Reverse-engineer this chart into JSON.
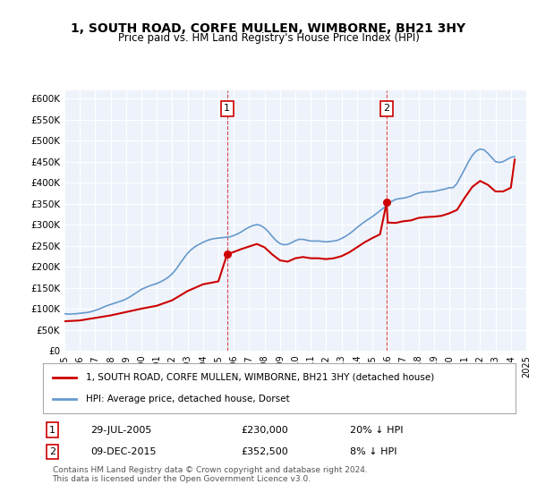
{
  "title": "1, SOUTH ROAD, CORFE MULLEN, WIMBORNE, BH21 3HY",
  "subtitle": "Price paid vs. HM Land Registry's House Price Index (HPI)",
  "ylabel": "",
  "ylim": [
    0,
    620000
  ],
  "yticks": [
    0,
    50000,
    100000,
    150000,
    200000,
    250000,
    300000,
    350000,
    400000,
    450000,
    500000,
    550000,
    600000
  ],
  "background_color": "#eef3fb",
  "plot_bg": "#eef3fb",
  "legend_label_red": "1, SOUTH ROAD, CORFE MULLEN, WIMBORNE, BH21 3HY (detached house)",
  "legend_label_blue": "HPI: Average price, detached house, Dorset",
  "marker1_date": 2005.57,
  "marker1_price": 230000,
  "marker1_label": "1",
  "marker2_date": 2015.93,
  "marker2_price": 352500,
  "marker2_label": "2",
  "footnote1": "1     29-JUL-2005          £230,000          20% ↓ HPI",
  "footnote2": "2     09-DEC-2015          £352,500            8% ↓ HPI",
  "copyright": "Contains HM Land Registry data © Crown copyright and database right 2024.\nThis data is licensed under the Open Government Licence v3.0.",
  "red_color": "#cc0000",
  "blue_color": "#6699cc",
  "hpi_data": {
    "years": [
      1995.0,
      1995.25,
      1995.5,
      1995.75,
      1996.0,
      1996.25,
      1996.5,
      1996.75,
      1997.0,
      1997.25,
      1997.5,
      1997.75,
      1998.0,
      1998.25,
      1998.5,
      1998.75,
      1999.0,
      1999.25,
      1999.5,
      1999.75,
      2000.0,
      2000.25,
      2000.5,
      2000.75,
      2001.0,
      2001.25,
      2001.5,
      2001.75,
      2002.0,
      2002.25,
      2002.5,
      2002.75,
      2003.0,
      2003.25,
      2003.5,
      2003.75,
      2004.0,
      2004.25,
      2004.5,
      2004.75,
      2005.0,
      2005.25,
      2005.5,
      2005.75,
      2006.0,
      2006.25,
      2006.5,
      2006.75,
      2007.0,
      2007.25,
      2007.5,
      2007.75,
      2008.0,
      2008.25,
      2008.5,
      2008.75,
      2009.0,
      2009.25,
      2009.5,
      2009.75,
      2010.0,
      2010.25,
      2010.5,
      2010.75,
      2011.0,
      2011.25,
      2011.5,
      2011.75,
      2012.0,
      2012.25,
      2012.5,
      2012.75,
      2013.0,
      2013.25,
      2013.5,
      2013.75,
      2014.0,
      2014.25,
      2014.5,
      2014.75,
      2015.0,
      2015.25,
      2015.5,
      2015.75,
      2016.0,
      2016.25,
      2016.5,
      2016.75,
      2017.0,
      2017.25,
      2017.5,
      2017.75,
      2018.0,
      2018.25,
      2018.5,
      2018.75,
      2019.0,
      2019.25,
      2019.5,
      2019.75,
      2020.0,
      2020.25,
      2020.5,
      2020.75,
      2021.0,
      2021.25,
      2021.5,
      2021.75,
      2022.0,
      2022.25,
      2022.5,
      2022.75,
      2023.0,
      2023.25,
      2023.5,
      2023.75,
      2024.0,
      2024.25
    ],
    "values": [
      88000,
      87000,
      87500,
      88000,
      89000,
      90000,
      91000,
      93000,
      96000,
      99000,
      103000,
      107000,
      110000,
      113000,
      116000,
      119000,
      123000,
      128000,
      134000,
      140000,
      146000,
      150000,
      154000,
      157000,
      160000,
      164000,
      169000,
      175000,
      183000,
      194000,
      207000,
      220000,
      232000,
      241000,
      248000,
      253000,
      258000,
      262000,
      265000,
      267000,
      268000,
      269000,
      270000,
      271000,
      274000,
      278000,
      283000,
      289000,
      294000,
      298000,
      300000,
      298000,
      292000,
      283000,
      272000,
      262000,
      255000,
      252000,
      253000,
      257000,
      262000,
      265000,
      265000,
      263000,
      261000,
      261000,
      261000,
      260000,
      259000,
      260000,
      261000,
      263000,
      267000,
      272000,
      278000,
      285000,
      293000,
      300000,
      307000,
      313000,
      319000,
      326000,
      333000,
      340000,
      348000,
      355000,
      360000,
      362000,
      363000,
      365000,
      368000,
      372000,
      375000,
      377000,
      378000,
      378000,
      379000,
      381000,
      383000,
      385000,
      388000,
      388000,
      398000,
      415000,
      432000,
      450000,
      465000,
      475000,
      480000,
      478000,
      470000,
      460000,
      450000,
      448000,
      450000,
      455000,
      460000,
      462000
    ]
  },
  "sale_data": {
    "years": [
      2005.57,
      2015.93
    ],
    "prices_abs": [
      230000,
      352500
    ],
    "prices_hpi": [
      275000,
      382000
    ]
  },
  "red_line_data": {
    "years": [
      1995.0,
      1996.0,
      1997.0,
      1998.0,
      1999.0,
      2000.0,
      2001.0,
      2002.0,
      2003.0,
      2004.0,
      2005.0,
      2005.57,
      2005.75,
      2006.0,
      2006.5,
      2007.0,
      2007.5,
      2008.0,
      2008.5,
      2009.0,
      2009.5,
      2010.0,
      2010.5,
      2011.0,
      2011.5,
      2012.0,
      2012.5,
      2013.0,
      2013.5,
      2014.0,
      2014.5,
      2015.0,
      2015.5,
      2015.93,
      2016.0,
      2016.5,
      2017.0,
      2017.5,
      2018.0,
      2018.5,
      2019.0,
      2019.5,
      2020.0,
      2020.5,
      2021.0,
      2021.5,
      2022.0,
      2022.5,
      2023.0,
      2023.5,
      2024.0,
      2024.25
    ],
    "values": [
      70000,
      72000,
      78000,
      84000,
      92000,
      100000,
      107000,
      120000,
      142000,
      158000,
      165000,
      230000,
      232000,
      235000,
      242000,
      248000,
      254000,
      246000,
      229000,
      215000,
      212000,
      220000,
      223000,
      220000,
      220000,
      218000,
      220000,
      225000,
      234000,
      246000,
      258000,
      268000,
      277000,
      352500,
      305000,
      304000,
      308000,
      310000,
      316000,
      318000,
      319000,
      321000,
      327000,
      335000,
      364000,
      390000,
      404000,
      395000,
      379000,
      379000,
      388000,
      455000
    ]
  }
}
